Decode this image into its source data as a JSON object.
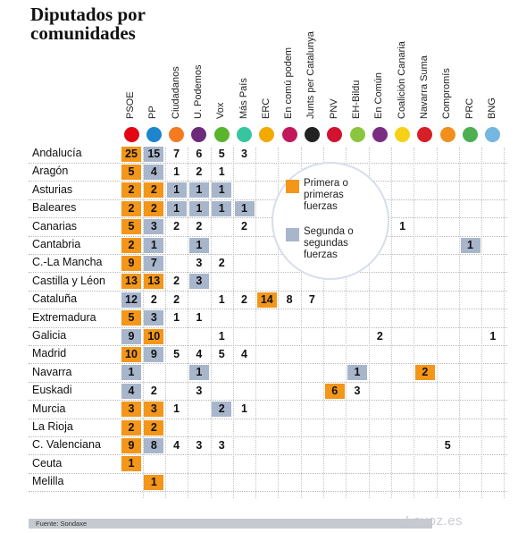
{
  "title": [
    "Diputados por",
    "comunidades"
  ],
  "source": "Fuente: Sondaxe",
  "brand": "Lavoz.es",
  "colors": {
    "first": "#f39619",
    "second": "#a8b6cc"
  },
  "legend": {
    "first": "Primera o primeras fuerzas",
    "second": "Segunda o segundas fuerzas"
  },
  "chart_data": {
    "type": "table",
    "parties": [
      {
        "name": "PSOE",
        "logo": "psoe-logo",
        "color": "#e30613"
      },
      {
        "name": "PP",
        "logo": "pp-logo",
        "color": "#1d84ce"
      },
      {
        "name": "Ciudadanos",
        "logo": "ciudadanos-logo",
        "color": "#f47b20"
      },
      {
        "name": "U. Podemos",
        "logo": "podemos-logo",
        "color": "#6b2a7a"
      },
      {
        "name": "Vox",
        "logo": "vox-logo",
        "color": "#5ab42e"
      },
      {
        "name": "Más País",
        "logo": "mas-pais-logo",
        "color": "#37c5a0"
      },
      {
        "name": "ERC",
        "logo": "erc-logo",
        "color": "#f2a900"
      },
      {
        "name": "En comú podem",
        "logo": "en-comu-logo",
        "color": "#c2185b"
      },
      {
        "name": "Junts per Catalunya",
        "logo": "junts-logo",
        "color": "#222222"
      },
      {
        "name": "PNV",
        "logo": "pnv-logo",
        "color": "#d2122e"
      },
      {
        "name": "EH-Bildu",
        "logo": "bildu-logo",
        "color": "#8cc63e"
      },
      {
        "name": "En Común",
        "logo": "en-comun-logo",
        "color": "#7b2c83"
      },
      {
        "name": "Coalición Canaria",
        "logo": "cc-logo",
        "color": "#f7d117"
      },
      {
        "name": "Navarra Suma",
        "logo": "navarra-suma-logo",
        "color": "#d61f26"
      },
      {
        "name": "Compromís",
        "logo": "compromis-logo",
        "color": "#f28e1c"
      },
      {
        "name": "PRC",
        "logo": "prc-logo",
        "color": "#4caf50"
      },
      {
        "name": "BNG",
        "logo": "bng-logo",
        "color": "#74b7e0"
      }
    ],
    "rows": [
      {
        "name": "Andalucía",
        "values": [
          25,
          15,
          7,
          6,
          5,
          3,
          null,
          null,
          null,
          null,
          null,
          null,
          null,
          null,
          null,
          null,
          null
        ],
        "first": [
          0
        ],
        "second": [
          1
        ]
      },
      {
        "name": "Aragón",
        "values": [
          5,
          4,
          1,
          2,
          1,
          null,
          null,
          null,
          null,
          null,
          null,
          null,
          null,
          null,
          null,
          null,
          null
        ],
        "first": [
          0
        ],
        "second": [
          1
        ]
      },
      {
        "name": "Asturias",
        "values": [
          2,
          2,
          1,
          1,
          1,
          null,
          null,
          null,
          null,
          null,
          null,
          null,
          null,
          null,
          null,
          null,
          null
        ],
        "first": [
          0,
          1
        ],
        "second": [
          2,
          3,
          4
        ]
      },
      {
        "name": "Baleares",
        "values": [
          2,
          2,
          1,
          1,
          1,
          1,
          null,
          null,
          null,
          null,
          null,
          null,
          null,
          null,
          null,
          null,
          null
        ],
        "first": [
          0,
          1
        ],
        "second": [
          2,
          3,
          4,
          5
        ]
      },
      {
        "name": "Canarias",
        "values": [
          5,
          3,
          2,
          2,
          null,
          2,
          null,
          null,
          null,
          null,
          null,
          null,
          1,
          null,
          null,
          null,
          null
        ],
        "first": [
          0
        ],
        "second": [
          1
        ]
      },
      {
        "name": "Cantabria",
        "values": [
          2,
          1,
          null,
          1,
          null,
          null,
          null,
          null,
          null,
          null,
          null,
          null,
          null,
          null,
          null,
          1,
          null
        ],
        "first": [
          0
        ],
        "second": [
          1,
          3,
          15
        ]
      },
      {
        "name": "C.-La Mancha",
        "values": [
          9,
          7,
          null,
          3,
          2,
          null,
          null,
          null,
          null,
          null,
          null,
          null,
          null,
          null,
          null,
          null,
          null
        ],
        "first": [
          0
        ],
        "second": [
          1
        ]
      },
      {
        "name": "Castilla y Léon",
        "values": [
          13,
          13,
          2,
          3,
          null,
          null,
          null,
          null,
          null,
          null,
          null,
          null,
          null,
          null,
          null,
          null,
          null
        ],
        "first": [
          0,
          1
        ],
        "second": [
          3
        ]
      },
      {
        "name": "Cataluña",
        "values": [
          12,
          2,
          2,
          null,
          1,
          2,
          14,
          8,
          7,
          null,
          null,
          null,
          null,
          null,
          null,
          null,
          null
        ],
        "first": [
          6
        ],
        "second": [
          0
        ]
      },
      {
        "name": "Extremadura",
        "values": [
          5,
          3,
          1,
          1,
          null,
          null,
          null,
          null,
          null,
          null,
          null,
          null,
          null,
          null,
          null,
          null,
          null
        ],
        "first": [
          0
        ],
        "second": [
          1
        ]
      },
      {
        "name": "Galicia",
        "values": [
          9,
          10,
          null,
          null,
          1,
          null,
          null,
          null,
          null,
          null,
          null,
          2,
          null,
          null,
          null,
          null,
          1
        ],
        "first": [
          1
        ],
        "second": [
          0
        ]
      },
      {
        "name": "Madrid",
        "values": [
          10,
          9,
          5,
          4,
          5,
          4,
          null,
          null,
          null,
          null,
          null,
          null,
          null,
          null,
          null,
          null,
          null
        ],
        "first": [
          0
        ],
        "second": [
          1
        ]
      },
      {
        "name": "Navarra",
        "values": [
          1,
          null,
          null,
          1,
          null,
          null,
          null,
          null,
          null,
          null,
          1,
          null,
          null,
          2,
          null,
          null,
          null
        ],
        "first": [
          13
        ],
        "second": [
          0,
          3,
          10
        ]
      },
      {
        "name": "Euskadi",
        "values": [
          4,
          2,
          null,
          3,
          null,
          null,
          null,
          null,
          null,
          6,
          3,
          null,
          null,
          null,
          null,
          null,
          null
        ],
        "first": [
          9
        ],
        "second": [
          0
        ]
      },
      {
        "name": "Murcia",
        "values": [
          3,
          3,
          1,
          null,
          2,
          1,
          null,
          null,
          null,
          null,
          null,
          null,
          null,
          null,
          null,
          null,
          null
        ],
        "first": [
          0,
          1
        ],
        "second": [
          4
        ]
      },
      {
        "name": "La Rioja",
        "values": [
          2,
          2,
          null,
          null,
          null,
          null,
          null,
          null,
          null,
          null,
          null,
          null,
          null,
          null,
          null,
          null,
          null
        ],
        "first": [
          0,
          1
        ],
        "second": []
      },
      {
        "name": "C. Valenciana",
        "values": [
          9,
          8,
          4,
          3,
          3,
          null,
          null,
          null,
          null,
          null,
          null,
          null,
          null,
          null,
          5,
          null,
          null
        ],
        "first": [
          0
        ],
        "second": [
          1
        ]
      },
      {
        "name": "Ceuta",
        "values": [
          1,
          null,
          null,
          null,
          null,
          null,
          null,
          null,
          null,
          null,
          null,
          null,
          null,
          null,
          null,
          null,
          null
        ],
        "first": [
          0
        ],
        "second": []
      },
      {
        "name": "Melilla",
        "values": [
          null,
          1,
          null,
          null,
          null,
          null,
          null,
          null,
          null,
          null,
          null,
          null,
          null,
          null,
          null,
          null,
          null
        ],
        "first": [
          1
        ],
        "second": []
      }
    ]
  }
}
